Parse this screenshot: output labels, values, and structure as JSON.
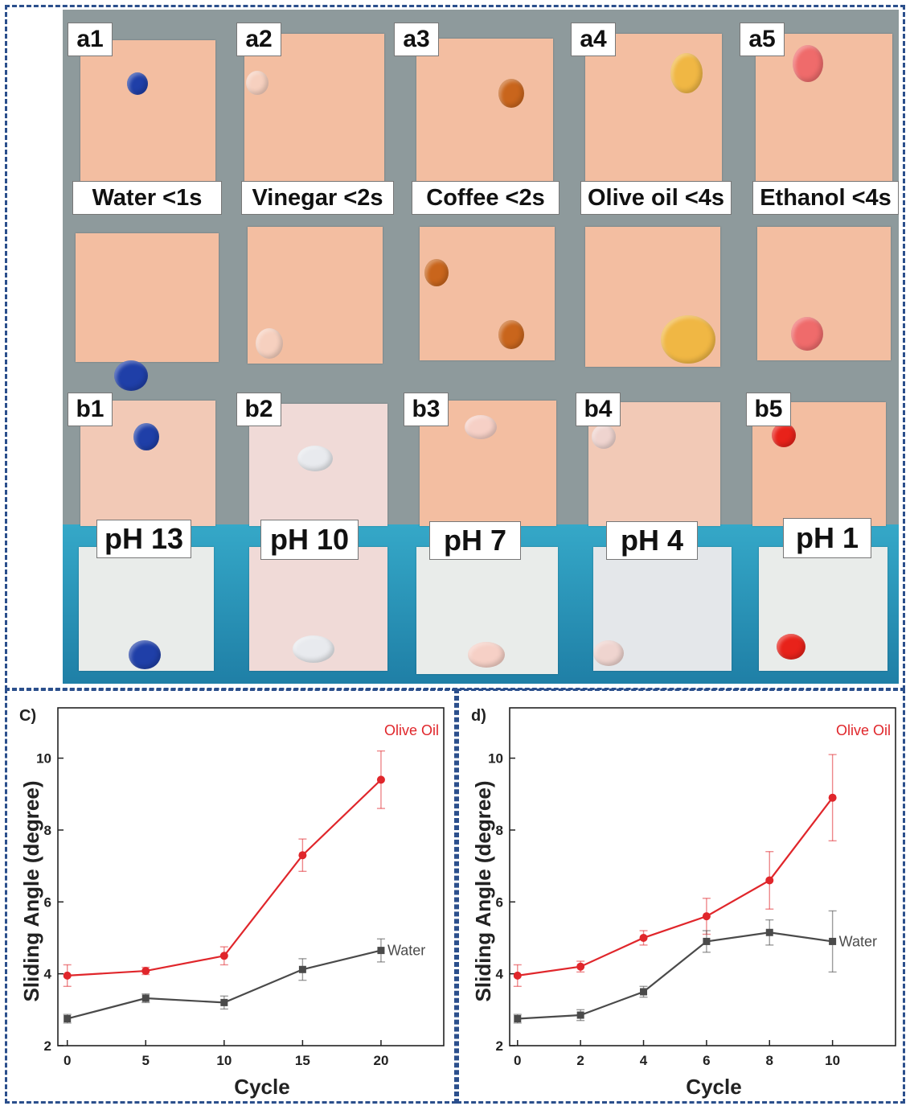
{
  "photo_panel": {
    "row_a_labels": [
      "a1",
      "a2",
      "a3",
      "a4",
      "a5"
    ],
    "liquid_labels": [
      "Water <1s",
      "Vinegar <2s",
      "Coffee <2s",
      "Olive oil <4s",
      "Ethanol <4s"
    ],
    "row_b_labels": [
      "b1",
      "b2",
      "b3",
      "b4",
      "b5"
    ],
    "ph_labels": [
      "pH 13",
      "pH 10",
      "pH 7",
      "pH 4",
      "pH 1"
    ],
    "drop_colors": [
      "#1f3fa8",
      "#f6d0bf",
      "#c9651c",
      "#f0b744",
      "#ef6b6b"
    ],
    "ph_drop_colors": [
      "#1f3fa8",
      "#e8eaee",
      "#f6d0c6",
      "#efd4cf",
      "#e8221a"
    ]
  },
  "chart_data": [
    {
      "panel_label": "C)",
      "type": "line",
      "xlabel": "Cycle",
      "ylabel": "Sliding Angle (degree)",
      "x": [
        0,
        5,
        10,
        15,
        20
      ],
      "x_ticks": [
        "0",
        "5",
        "10",
        "15",
        "20"
      ],
      "y_ticks": [
        "2",
        "4",
        "6",
        "8",
        "10"
      ],
      "xlim": [
        -0.6,
        24
      ],
      "ylim": [
        2,
        11.4
      ],
      "series": [
        {
          "name": "Olive Oil",
          "color": "#e0262b",
          "marker": "circle",
          "values": [
            3.95,
            4.08,
            4.5,
            7.3,
            9.4
          ],
          "errors": [
            0.3,
            0.1,
            0.25,
            0.45,
            0.8
          ]
        },
        {
          "name": "Water",
          "color": "#4a4a4a",
          "marker": "square",
          "values": [
            2.75,
            3.32,
            3.2,
            4.12,
            4.65
          ],
          "errors": [
            0.12,
            0.12,
            0.18,
            0.3,
            0.32
          ]
        }
      ]
    },
    {
      "panel_label": "d)",
      "type": "line",
      "xlabel": "Cycle",
      "ylabel": "Sliding Angle (degree)",
      "x": [
        0,
        2,
        4,
        6,
        8,
        10
      ],
      "x_ticks": [
        "0",
        "2",
        "4",
        "6",
        "8",
        "10"
      ],
      "y_ticks": [
        "2",
        "4",
        "6",
        "8",
        "10"
      ],
      "xlim": [
        -0.25,
        12
      ],
      "ylim": [
        2,
        11.4
      ],
      "series": [
        {
          "name": "Olive Oil",
          "color": "#e0262b",
          "marker": "circle",
          "values": [
            3.95,
            4.2,
            5.0,
            5.6,
            6.6,
            8.9
          ],
          "errors": [
            0.3,
            0.15,
            0.2,
            0.5,
            0.8,
            1.2
          ]
        },
        {
          "name": "Water",
          "color": "#4a4a4a",
          "marker": "square",
          "values": [
            2.75,
            2.85,
            3.5,
            4.9,
            5.15,
            4.9
          ],
          "errors": [
            0.12,
            0.15,
            0.15,
            0.3,
            0.35,
            0.85
          ]
        }
      ]
    }
  ]
}
